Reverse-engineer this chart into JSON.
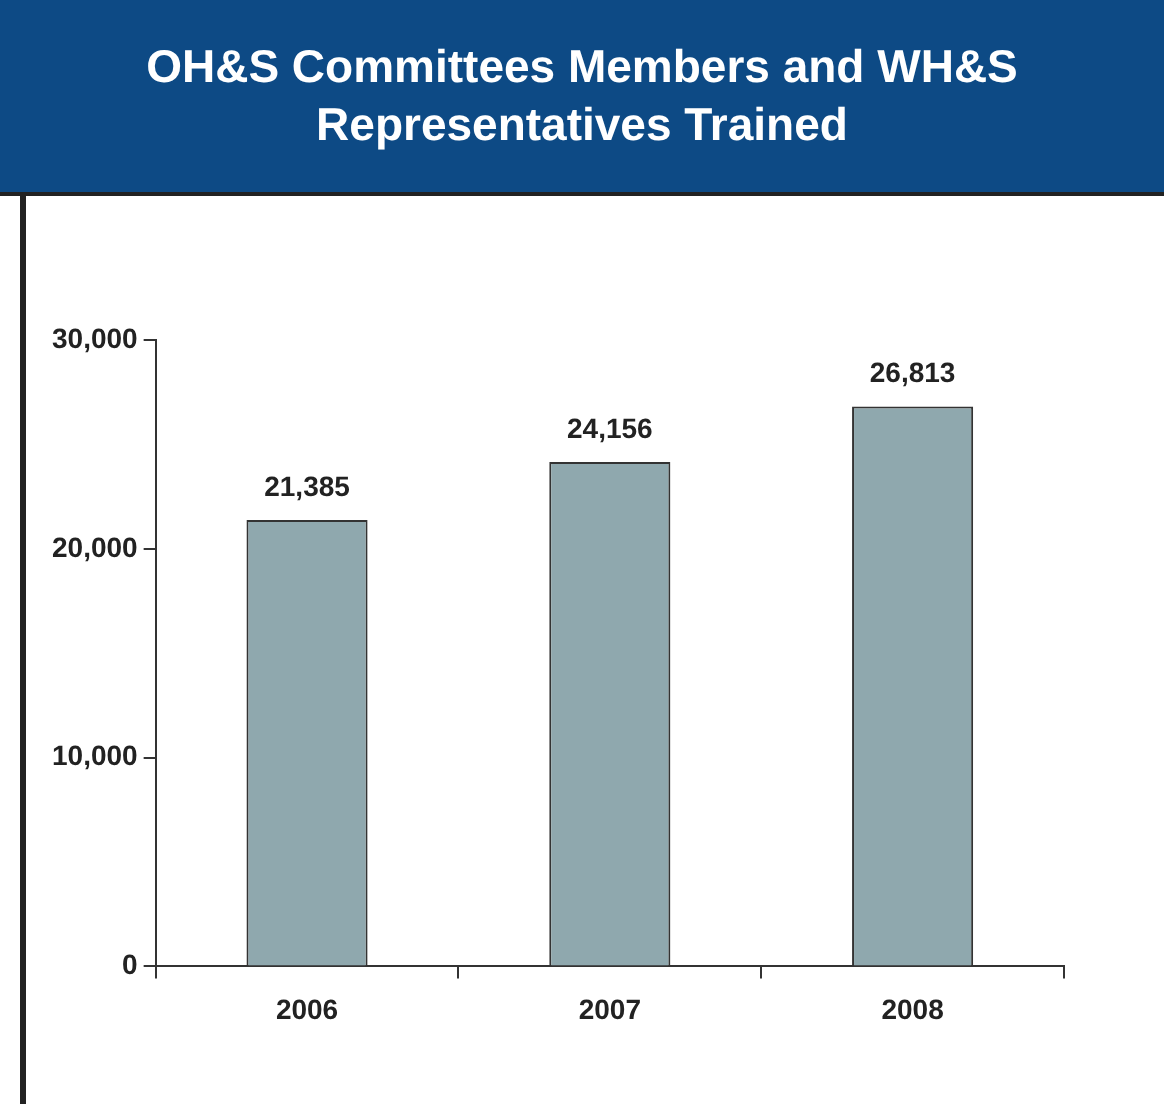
{
  "chart_data": {
    "type": "bar",
    "title": "OH&S Committees Members and WH&S Representatives Trained",
    "categories": [
      "2006",
      "2007",
      "2008"
    ],
    "values": [
      21385,
      24156,
      26813
    ],
    "value_labels": [
      "21,385",
      "24,156",
      "26,813"
    ],
    "color": "#8fa8ae",
    "ylim": [
      0,
      30000
    ],
    "yticks": [
      {
        "value": 0,
        "label": "0"
      },
      {
        "value": 10000,
        "label": "10,000"
      },
      {
        "value": 20000,
        "label": "20,000"
      },
      {
        "value": 30000,
        "label": "30,000"
      }
    ],
    "grid": false,
    "legend": false
  }
}
